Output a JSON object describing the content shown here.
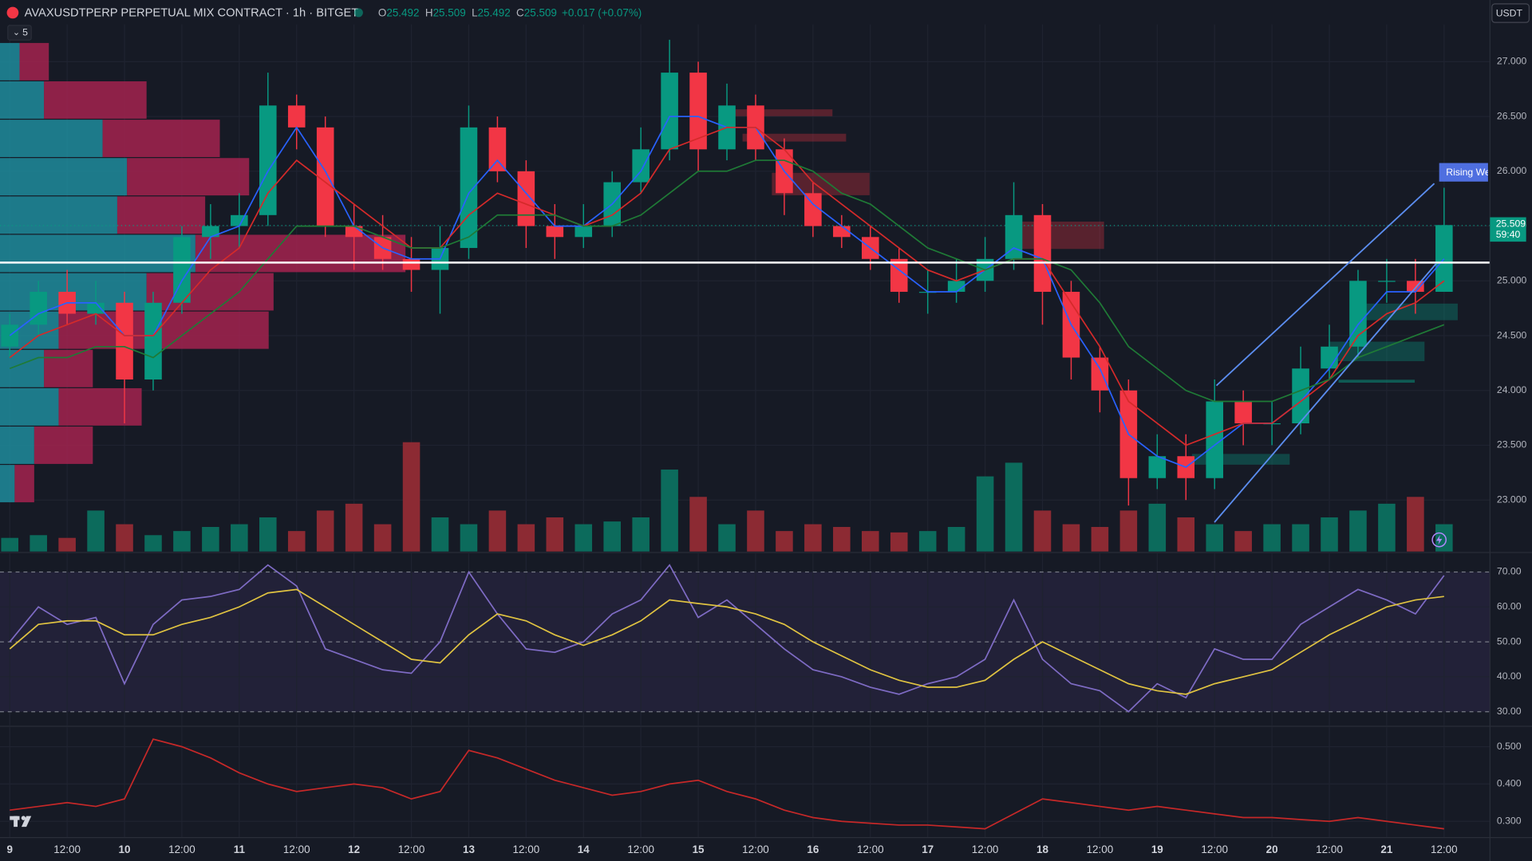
{
  "header": {
    "symbol": "AVAXUSDTPERP PERPETUAL MIX CONTRACT · 1h · BITGET",
    "ohlc": [
      {
        "key": "O",
        "value": "25.492"
      },
      {
        "key": "H",
        "value": "25.509"
      },
      {
        "key": "L",
        "value": "25.492"
      },
      {
        "key": "C",
        "value": "25.509"
      }
    ],
    "change": "+0.017 (+0.07%)",
    "currency": "USDT",
    "indicator_count": "5",
    "countdown": "59:40",
    "pattern_label": "Rising Wedge"
  },
  "chart_data": [
    {
      "type": "candlestick",
      "up_color": "#089981",
      "down_color": "#f23645",
      "last_price": 25.509,
      "x": [
        0,
        1,
        2,
        3,
        4,
        5,
        6,
        7,
        8,
        9,
        10,
        11,
        12,
        13,
        14,
        15,
        16,
        17,
        18,
        19,
        20,
        21,
        22,
        23,
        24,
        25,
        26,
        27,
        28,
        29,
        30,
        31,
        32,
        33,
        34,
        35,
        36,
        37,
        38,
        39,
        40,
        41,
        42,
        43,
        44,
        45,
        46,
        47,
        48,
        49,
        50
      ],
      "open": [
        24.4,
        24.6,
        24.9,
        24.7,
        24.8,
        24.1,
        24.8,
        25.4,
        25.5,
        25.6,
        26.6,
        26.4,
        25.5,
        25.4,
        25.2,
        25.1,
        25.3,
        26.4,
        26.0,
        25.5,
        25.4,
        25.5,
        25.9,
        26.2,
        26.9,
        26.2,
        26.6,
        26.2,
        25.8,
        25.5,
        25.4,
        25.2,
        24.9,
        24.9,
        25.0,
        25.2,
        25.6,
        24.9,
        24.3,
        24.0,
        23.2,
        23.4,
        23.2,
        23.9,
        23.7,
        23.7,
        24.2,
        24.4,
        25.0,
        25.0,
        24.9
      ],
      "high": [
        24.7,
        25.0,
        25.1,
        25.0,
        24.9,
        24.9,
        25.5,
        25.7,
        25.8,
        26.9,
        26.7,
        26.5,
        25.7,
        25.6,
        25.4,
        25.5,
        26.6,
        26.5,
        26.1,
        25.7,
        25.7,
        26.0,
        26.4,
        27.2,
        27.0,
        26.8,
        26.7,
        26.3,
        25.9,
        25.6,
        25.5,
        25.3,
        25.1,
        25.2,
        25.4,
        25.9,
        25.7,
        25.0,
        24.4,
        24.1,
        23.6,
        23.6,
        24.1,
        24.0,
        23.9,
        24.4,
        24.6,
        25.1,
        25.2,
        25.2,
        25.85
      ],
      "low": [
        24.3,
        24.5,
        24.6,
        24.6,
        23.7,
        24.0,
        24.7,
        25.2,
        25.3,
        25.5,
        26.2,
        25.4,
        25.1,
        25.1,
        24.9,
        24.7,
        25.2,
        25.9,
        25.3,
        25.2,
        25.3,
        25.4,
        25.8,
        26.1,
        26.0,
        26.1,
        26.1,
        25.6,
        25.4,
        25.3,
        25.1,
        24.8,
        24.7,
        24.8,
        24.9,
        25.1,
        24.6,
        24.1,
        23.8,
        22.95,
        23.1,
        23.0,
        23.1,
        23.5,
        23.5,
        23.6,
        24.1,
        24.3,
        24.8,
        24.7,
        24.9
      ],
      "close": [
        24.6,
        24.9,
        24.7,
        24.8,
        24.1,
        24.8,
        25.4,
        25.5,
        25.6,
        26.6,
        26.4,
        25.5,
        25.4,
        25.2,
        25.1,
        25.3,
        26.4,
        26.0,
        25.5,
        25.4,
        25.5,
        25.9,
        26.2,
        26.9,
        26.2,
        26.6,
        26.2,
        25.8,
        25.5,
        25.4,
        25.2,
        24.9,
        24.9,
        25.0,
        25.2,
        25.6,
        24.9,
        24.3,
        24.0,
        23.2,
        23.4,
        23.2,
        23.9,
        23.7,
        23.7,
        24.2,
        24.4,
        25.0,
        25.0,
        24.9,
        25.509
      ],
      "series": [
        {
          "color": "#2962ff",
          "values": [
            24.5,
            24.7,
            24.8,
            24.8,
            24.5,
            24.5,
            25.0,
            25.4,
            25.5,
            26.0,
            26.4,
            26.0,
            25.5,
            25.3,
            25.2,
            25.2,
            25.8,
            26.1,
            25.8,
            25.5,
            25.5,
            25.7,
            26.0,
            26.5,
            26.5,
            26.4,
            26.4,
            26.0,
            25.7,
            25.5,
            25.3,
            25.1,
            24.9,
            24.9,
            25.1,
            25.3,
            25.2,
            24.6,
            24.2,
            23.6,
            23.4,
            23.3,
            23.5,
            23.7,
            23.7,
            23.9,
            24.2,
            24.6,
            24.9,
            24.9,
            25.2
          ]
        },
        {
          "color": "#d42a2a",
          "values": [
            24.3,
            24.5,
            24.6,
            24.7,
            24.5,
            24.5,
            24.8,
            25.1,
            25.3,
            25.8,
            26.1,
            25.9,
            25.7,
            25.5,
            25.3,
            25.3,
            25.6,
            25.8,
            25.7,
            25.6,
            25.5,
            25.6,
            25.8,
            26.2,
            26.3,
            26.4,
            26.4,
            26.2,
            25.9,
            25.7,
            25.5,
            25.3,
            25.1,
            25.0,
            25.1,
            25.2,
            25.2,
            24.8,
            24.4,
            23.9,
            23.7,
            23.5,
            23.6,
            23.7,
            23.7,
            23.9,
            24.1,
            24.5,
            24.7,
            24.8,
            25.0
          ]
        },
        {
          "color": "#1f7a36",
          "values": [
            24.2,
            24.3,
            24.3,
            24.4,
            24.4,
            24.3,
            24.5,
            24.7,
            24.9,
            25.2,
            25.5,
            25.5,
            25.5,
            25.4,
            25.3,
            25.3,
            25.4,
            25.6,
            25.6,
            25.6,
            25.5,
            25.5,
            25.6,
            25.8,
            26.0,
            26.0,
            26.1,
            26.1,
            26.0,
            25.8,
            25.7,
            25.5,
            25.3,
            25.2,
            25.1,
            25.2,
            25.2,
            25.1,
            24.8,
            24.4,
            24.2,
            24.0,
            23.9,
            23.9,
            23.9,
            24.0,
            24.1,
            24.3,
            24.4,
            24.5,
            24.6
          ]
        }
      ],
      "xlim": [
        -0.34,
        51.6
      ],
      "ylim": [
        22.53,
        27.34
      ],
      "xticks": [
        {
          "value": 0,
          "label": "9"
        },
        {
          "value": 2,
          "label": "12:00"
        },
        {
          "value": 4,
          "label": "10"
        },
        {
          "value": 6,
          "label": "12:00"
        },
        {
          "value": 8,
          "label": "11"
        },
        {
          "value": 10,
          "label": "12:00"
        },
        {
          "value": 12,
          "label": "12"
        },
        {
          "value": 14,
          "label": "12:00"
        },
        {
          "value": 16,
          "label": "13"
        },
        {
          "value": 18,
          "label": "12:00"
        },
        {
          "value": 20,
          "label": "14"
        },
        {
          "value": 22,
          "label": "12:00"
        },
        {
          "value": 24,
          "label": "15"
        },
        {
          "value": 26,
          "label": "12:00"
        },
        {
          "value": 28,
          "label": "16"
        },
        {
          "value": 30,
          "label": "12:00"
        },
        {
          "value": 32,
          "label": "17"
        },
        {
          "value": 34,
          "label": "12:00"
        },
        {
          "value": 36,
          "label": "18"
        },
        {
          "value": 38,
          "label": "12:00"
        },
        {
          "value": 40,
          "label": "19"
        },
        {
          "value": 42,
          "label": "12:00"
        },
        {
          "value": 44,
          "label": "20"
        },
        {
          "value": 46,
          "label": "12:00"
        },
        {
          "value": 48,
          "label": "21"
        },
        {
          "value": 50,
          "label": "12:00"
        }
      ],
      "yticks": [
        {
          "value": 23,
          "label": "23.000"
        },
        {
          "value": 23.5,
          "label": "23.500"
        },
        {
          "value": 24,
          "label": "24.000"
        },
        {
          "value": 24.5,
          "label": "24.500"
        },
        {
          "value": 25,
          "label": "25.000"
        },
        {
          "value": 25.5,
          "label": "25.500"
        },
        {
          "value": 26,
          "label": "26.000"
        },
        {
          "value": 26.5,
          "label": "26.500"
        },
        {
          "value": 27,
          "label": "27.000"
        }
      ]
    },
    {
      "type": "bar",
      "up_color": "#0c6b5c",
      "down_color": "#8c2a33",
      "ylim": [
        0,
        100
      ],
      "values": [
        10,
        12,
        10,
        30,
        20,
        12,
        15,
        18,
        20,
        25,
        15,
        30,
        35,
        20,
        80,
        25,
        20,
        30,
        20,
        25,
        20,
        22,
        25,
        60,
        40,
        20,
        30,
        15,
        20,
        18,
        15,
        14,
        15,
        18,
        55,
        65,
        30,
        20,
        18,
        30,
        35,
        25,
        20,
        15,
        20,
        20,
        25,
        30,
        35,
        40,
        20
      ]
    },
    {
      "type": "profile",
      "xlim": [
        0,
        1525
      ],
      "y": [
        27.0,
        26.65,
        26.3,
        25.95,
        25.6,
        25.25,
        24.9,
        24.55,
        24.2,
        23.85,
        23.5,
        23.15
      ],
      "series": [
        {
          "color": "#1f8c9c",
          "values": [
            20,
            45,
            105,
            130,
            120,
            200,
            150,
            60,
            45,
            60,
            35,
            15
          ]
        },
        {
          "color": "#a3234f",
          "values": [
            30,
            105,
            120,
            125,
            90,
            215,
            130,
            215,
            50,
            85,
            60,
            20
          ]
        }
      ]
    },
    {
      "type": "line",
      "band_color": "#7e57c2",
      "ylim": [
        26.1,
        75.3
      ],
      "yticks": [
        {
          "value": 30,
          "label": "30.00"
        },
        {
          "value": 40,
          "label": "40.00"
        },
        {
          "value": 50,
          "label": "50.00"
        },
        {
          "value": 60,
          "label": "60.00"
        },
        {
          "value": 70,
          "label": "70.00"
        }
      ],
      "series": [
        {
          "color": "#7e6bc4",
          "values": [
            50,
            60,
            55,
            57,
            38,
            55,
            62,
            63,
            65,
            72,
            66,
            48,
            45,
            42,
            41,
            50,
            70,
            58,
            48,
            47,
            50,
            58,
            62,
            72,
            57,
            62,
            55,
            48,
            42,
            40,
            37,
            35,
            38,
            40,
            45,
            62,
            45,
            38,
            36,
            30,
            38,
            34,
            48,
            45,
            45,
            55,
            60,
            65,
            62,
            58,
            69
          ]
        },
        {
          "color": "#e0c341",
          "values": [
            48,
            55,
            56,
            56,
            52,
            52,
            55,
            57,
            60,
            64,
            65,
            60,
            55,
            50,
            45,
            44,
            52,
            58,
            56,
            52,
            49,
            52,
            56,
            62,
            61,
            60,
            58,
            55,
            50,
            46,
            42,
            39,
            37,
            37,
            39,
            45,
            50,
            46,
            42,
            38,
            36,
            35,
            38,
            40,
            42,
            47,
            52,
            56,
            60,
            62,
            63
          ]
        }
      ]
    },
    {
      "type": "line",
      "ylim": [
        0.2565,
        0.552
      ],
      "yticks": [
        {
          "value": 0.3,
          "label": "0.300"
        },
        {
          "value": 0.4,
          "label": "0.400"
        },
        {
          "value": 0.5,
          "label": "0.500"
        }
      ],
      "series": [
        {
          "color": "#c62828",
          "values": [
            0.33,
            0.34,
            0.35,
            0.34,
            0.36,
            0.52,
            0.5,
            0.47,
            0.43,
            0.4,
            0.38,
            0.39,
            0.4,
            0.39,
            0.36,
            0.38,
            0.49,
            0.47,
            0.44,
            0.41,
            0.39,
            0.37,
            0.38,
            0.4,
            0.41,
            0.38,
            0.36,
            0.33,
            0.31,
            0.3,
            0.295,
            0.29,
            0.29,
            0.285,
            0.28,
            0.32,
            0.36,
            0.35,
            0.34,
            0.33,
            0.34,
            0.33,
            0.32,
            0.31,
            0.31,
            0.305,
            0.3,
            0.31,
            0.3,
            0.29,
            0.28
          ]
        }
      ]
    }
  ]
}
